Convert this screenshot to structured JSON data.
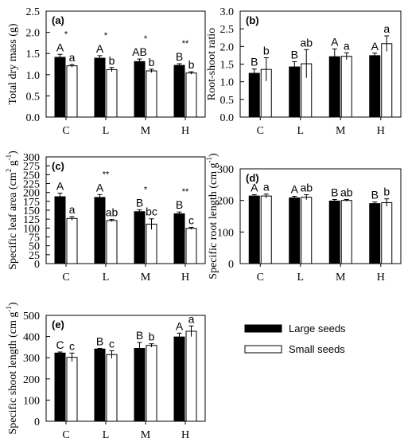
{
  "legend": {
    "large_label": "Large seeds",
    "small_label": "Small seeds"
  },
  "chart_data": [
    {
      "type": "bar",
      "panel_label": "(a)",
      "ylabel": "Total dry mass (g)",
      "categories": [
        "C",
        "L",
        "M",
        "H"
      ],
      "ylim": [
        0,
        2.5
      ],
      "yticks": [
        "0.0",
        "0.5",
        "1.0",
        "1.5",
        "2.0",
        "2.5"
      ],
      "series": [
        {
          "name": "Large seeds",
          "values": [
            1.41,
            1.39,
            1.31,
            1.22
          ],
          "errors": [
            0.07,
            0.06,
            0.06,
            0.04
          ],
          "letters": [
            "A",
            "A",
            "AB",
            "B"
          ]
        },
        {
          "name": "Small seeds",
          "values": [
            1.21,
            1.12,
            1.09,
            1.04
          ],
          "errors": [
            0.03,
            0.05,
            0.04,
            0.03
          ],
          "letters": [
            "a",
            "b",
            "b",
            "b"
          ]
        }
      ],
      "stars": [
        "*",
        "*",
        "*",
        "**"
      ]
    },
    {
      "type": "bar",
      "panel_label": "(b)",
      "ylabel": "Root-shoot ratio",
      "categories": [
        "C",
        "L",
        "M",
        "H"
      ],
      "ylim": [
        0,
        3.0
      ],
      "yticks": [
        "0.0",
        "0.5",
        "1.0",
        "1.5",
        "2.0",
        "2.5",
        "3.0"
      ],
      "series": [
        {
          "name": "Large seeds",
          "values": [
            1.24,
            1.42,
            1.71,
            1.74
          ],
          "errors": [
            0.12,
            0.15,
            0.22,
            0.07
          ],
          "letters": [
            "B",
            "B",
            "A",
            "A"
          ]
        },
        {
          "name": "Small seeds",
          "values": [
            1.35,
            1.51,
            1.72,
            2.08
          ],
          "errors": [
            0.33,
            0.4,
            0.1,
            0.22
          ],
          "letters": [
            "b",
            "ab",
            "a",
            "a"
          ]
        }
      ],
      "stars": [
        "",
        "",
        "",
        ""
      ]
    },
    {
      "type": "bar",
      "panel_label": "(c)",
      "ylabel": "Specific leaf area (cm",
      "ylabel_sup": "2",
      "ylabel_mid": " g",
      "ylabel_sup2": "-1",
      "ylabel_end": ")",
      "categories": [
        "C",
        "L",
        "M",
        "H"
      ],
      "ylim": [
        0,
        300
      ],
      "yticks": [
        "0",
        "25",
        "50",
        "75",
        "100",
        "125",
        "150",
        "175",
        "200",
        "225",
        "250",
        "275",
        "300"
      ],
      "series": [
        {
          "name": "Large seeds",
          "values": [
            188,
            186,
            146,
            140
          ],
          "errors": [
            10,
            8,
            5,
            5
          ],
          "letters": [
            "A",
            "A",
            "B",
            "B"
          ]
        },
        {
          "name": "Small seeds",
          "values": [
            127,
            121,
            111,
            99
          ],
          "errors": [
            5,
            3,
            15,
            3
          ],
          "letters": [
            "a",
            "ab",
            "bc",
            "c"
          ]
        }
      ],
      "stars": [
        "",
        "**",
        "*",
        "**"
      ]
    },
    {
      "type": "bar",
      "panel_label": "(d)",
      "ylabel": "Specific root length (cm g",
      "ylabel_sup": "-1",
      "ylabel_end": ")",
      "categories": [
        "C",
        "L",
        "M",
        "H"
      ],
      "ylim": [
        0,
        300
      ],
      "yticks": [
        "0",
        "100",
        "200",
        "300"
      ],
      "series": [
        {
          "name": "Large seeds",
          "values": [
            214,
            208,
            198,
            190
          ],
          "errors": [
            4,
            5,
            5,
            5
          ],
          "letters": [
            "A",
            "A",
            "B",
            "B"
          ]
        },
        {
          "name": "Small seeds",
          "values": [
            214,
            210,
            200,
            193
          ],
          "errors": [
            6,
            8,
            3,
            12
          ],
          "letters": [
            "a",
            "ab",
            "ab",
            "b"
          ]
        }
      ],
      "stars": [
        "",
        "",
        "",
        ""
      ]
    },
    {
      "type": "bar",
      "panel_label": "(e)",
      "ylabel": "Specific shoot length (cm g",
      "ylabel_sup": "-1",
      "ylabel_end": ")",
      "categories": [
        "C",
        "L",
        "M",
        "H"
      ],
      "ylim": [
        0,
        500
      ],
      "yticks": [
        "0",
        "100",
        "200",
        "300",
        "400",
        "500"
      ],
      "series": [
        {
          "name": "Large seeds",
          "values": [
            322,
            341,
            344,
            398
          ],
          "errors": [
            5,
            3,
            28,
            18
          ],
          "letters": [
            "C",
            "B",
            "B",
            "A"
          ]
        },
        {
          "name": "Small seeds",
          "values": [
            302,
            315,
            358,
            425
          ],
          "errors": [
            20,
            18,
            8,
            25
          ],
          "letters": [
            "c",
            "c",
            "b",
            "a"
          ]
        }
      ],
      "stars": [
        "",
        "",
        "",
        ""
      ]
    }
  ]
}
